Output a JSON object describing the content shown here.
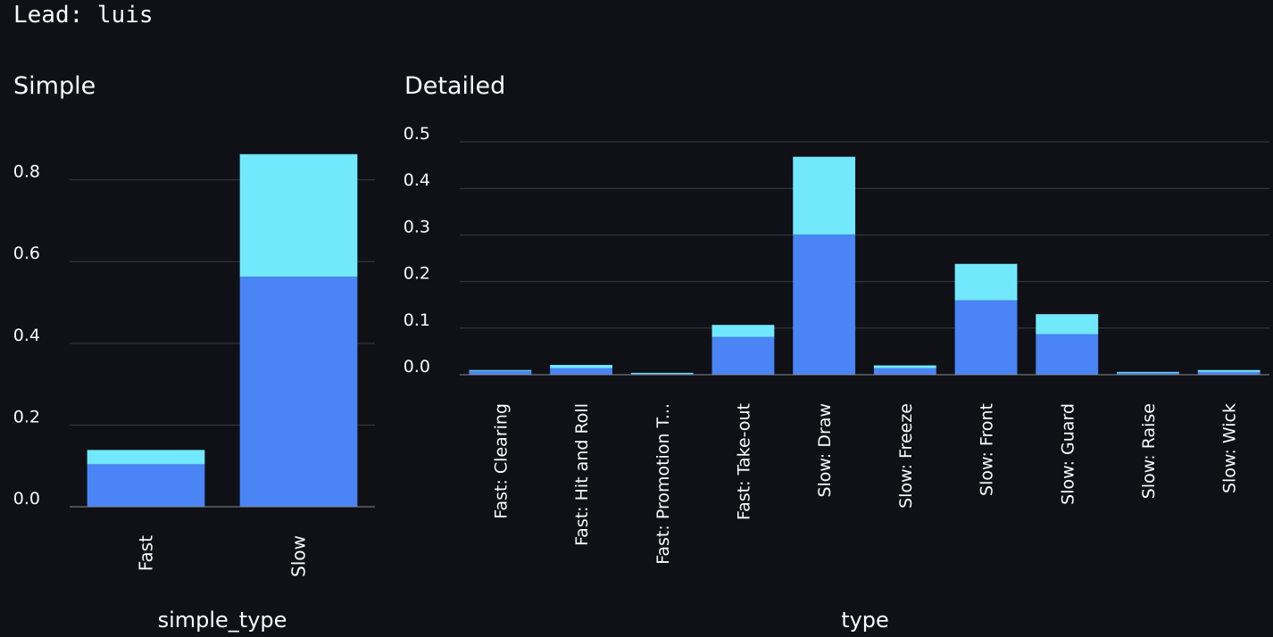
{
  "header": {
    "lead_text": "Lead: luis"
  },
  "colors": {
    "background": "#0f1117",
    "lower_series": "#4a84f5",
    "upper_series": "#72e8fd",
    "gridline": "#3b3d45",
    "axis": "#8a8c92"
  },
  "chart_data": [
    {
      "type": "bar",
      "stacked": true,
      "title": "Simple",
      "xlabel": "simple_type",
      "ylabel": "",
      "categories": [
        "Fast",
        "Slow"
      ],
      "series": [
        {
          "values": [
            0.104,
            0.563
          ]
        },
        {
          "values": [
            0.035,
            0.3
          ]
        }
      ],
      "ylim": [
        0,
        0.88
      ],
      "yticks": [
        "0.0",
        "0.2",
        "0.4",
        "0.6",
        "0.8"
      ],
      "grid": true
    },
    {
      "type": "bar",
      "stacked": true,
      "title": "Detailed",
      "xlabel": "type",
      "ylabel": "",
      "categories": [
        "Fast: Clearing",
        "Fast: Hit and Roll",
        "Fast: Promotion T...",
        "Fast: Take-out",
        "Slow: Draw",
        "Slow: Freeze",
        "Slow: Front",
        "Slow: Guard",
        "Slow: Raise",
        "Slow: Wick"
      ],
      "series": [
        {
          "values": [
            0.008,
            0.014,
            0.002,
            0.081,
            0.301,
            0.014,
            0.16,
            0.087,
            0.004,
            0.006
          ]
        },
        {
          "values": [
            0.002,
            0.007,
            0.002,
            0.026,
            0.167,
            0.006,
            0.078,
            0.043,
            0.002,
            0.004
          ]
        }
      ],
      "ylim": [
        0,
        0.5
      ],
      "yticks": [
        "0.0",
        "0.1",
        "0.2",
        "0.3",
        "0.4",
        "0.5"
      ],
      "grid": true
    }
  ]
}
